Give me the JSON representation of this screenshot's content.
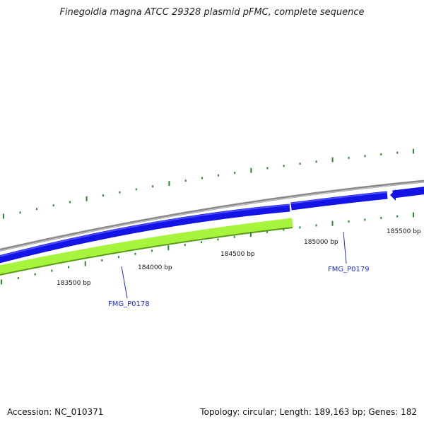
{
  "title": "Finegoldia magna ATCC 29328 plasmid pFMC, complete sequence",
  "footer": {
    "accession": "Accession: NC_010371",
    "summary": "Topology: circular; Length: 189,163 bp; Genes: 182"
  },
  "ticks": [
    {
      "label": "183500 bp"
    },
    {
      "label": "184000 bp"
    },
    {
      "label": "184500 bp"
    },
    {
      "label": "185000 bp"
    },
    {
      "label": "185500 bp"
    }
  ],
  "genes": [
    {
      "label": "FMG_P0178"
    },
    {
      "label": "FMG_P0179"
    }
  ],
  "colors": {
    "backbone": "#8a8a8a",
    "forward_gene": "#1414e6",
    "reverse_gene": "#a6f53c",
    "tick": "#2a8a2a",
    "gene_label": "#1c2ccf"
  }
}
